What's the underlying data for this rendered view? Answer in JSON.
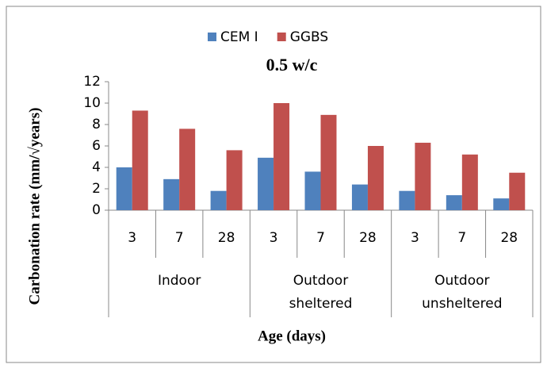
{
  "chart_data": {
    "type": "bar",
    "title": "0.5 w/c",
    "x_label": "Age (days)",
    "y_label": "Carbonation rate (mm/√years)",
    "categories": [
      "3",
      "7",
      "28",
      "3",
      "7",
      "28",
      "3",
      "7",
      "28"
    ],
    "category_groups": [
      "Indoor",
      "Outdoor sheltered",
      "Outdoor unsheltered"
    ],
    "series": [
      {
        "name": "CEM I",
        "color": "#4f81bd",
        "values": [
          4.0,
          2.9,
          1.8,
          4.9,
          3.6,
          2.4,
          1.8,
          1.4,
          1.1
        ]
      },
      {
        "name": "GGBS",
        "color": "#c0504d",
        "values": [
          9.3,
          7.6,
          5.6,
          10.0,
          8.9,
          6.0,
          6.3,
          5.2,
          3.5
        ]
      }
    ],
    "ylim": [
      0,
      12
    ],
    "yticks": [
      0,
      2,
      4,
      6,
      8,
      10,
      12
    ],
    "grid": false,
    "legend": "top"
  }
}
